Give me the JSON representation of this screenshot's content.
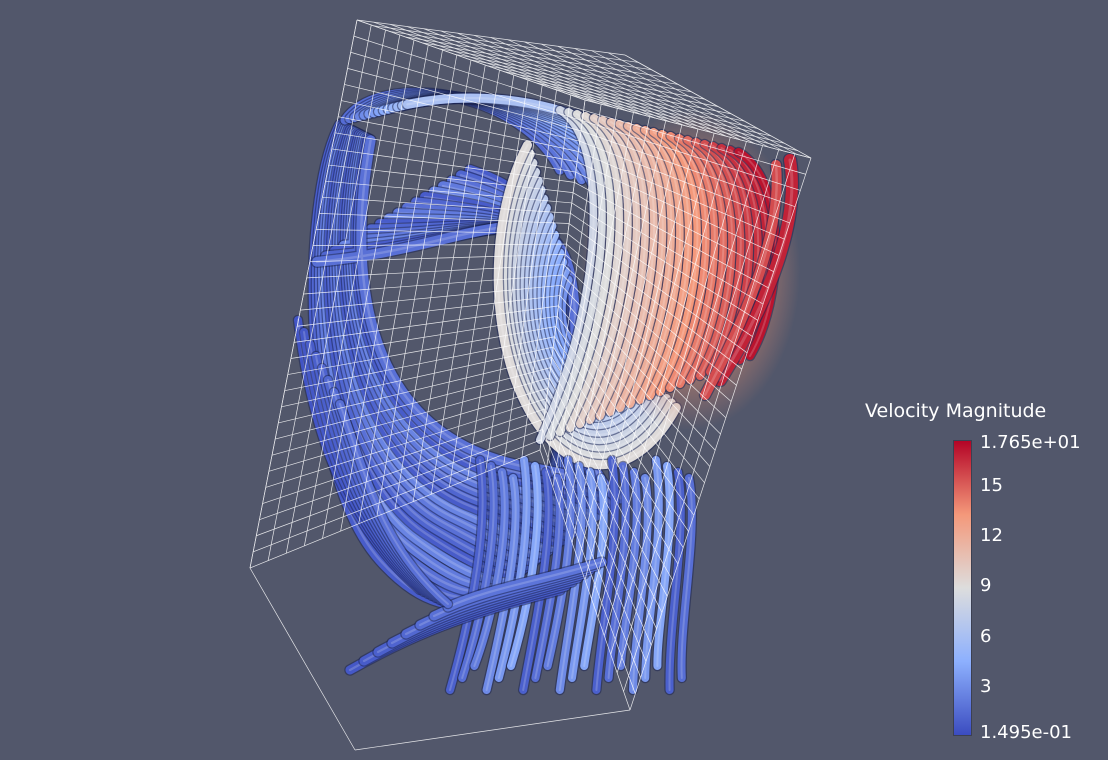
{
  "scene": {
    "background_color": "#52576b",
    "wireframe_color": "#ffffff",
    "rendering": "streamline-tubes"
  },
  "legend": {
    "title": "Velocity Magnitude",
    "max_label": "1.765e+01",
    "min_label": "1.495e-01",
    "min_value": 0.1495,
    "max_value": 17.65,
    "ticks": [
      {
        "value": 15,
        "label": "15"
      },
      {
        "value": 12,
        "label": "12"
      },
      {
        "value": 9,
        "label": "9"
      },
      {
        "value": 6,
        "label": "6"
      },
      {
        "value": 3,
        "label": "3"
      }
    ],
    "colormap": [
      "#3b4cc0",
      "#8db0fe",
      "#dddddd",
      "#f4987a",
      "#b40426"
    ]
  }
}
